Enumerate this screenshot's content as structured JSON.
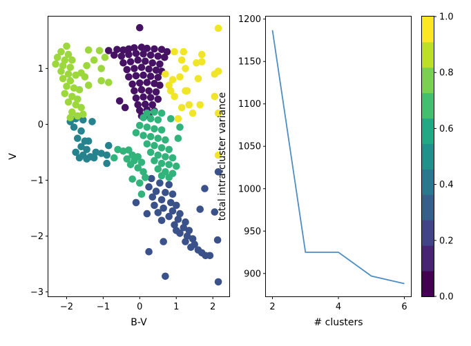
{
  "chart_data": [
    {
      "type": "scatter",
      "title": "",
      "xlabel": "B-V",
      "ylabel": "V",
      "xlim": [
        -2.5,
        2.45
      ],
      "ylim": [
        -3.08,
        1.93
      ],
      "xticks": [
        -2,
        -1,
        0,
        1,
        2
      ],
      "xtick_labels": [
        "−2",
        "−1",
        "0",
        "1",
        "2"
      ],
      "yticks": [
        -3,
        -2,
        -1,
        0,
        1
      ],
      "ytick_labels": [
        "−3",
        "−2",
        "−1",
        "0",
        "1"
      ],
      "grid": false,
      "legend": "none",
      "color_scale": "viridis, values 0.0 to 1.0 via colorbar",
      "series": [
        {
          "value": 0.05,
          "points": [
            [
              0.0,
              1.73
            ],
            [
              -0.85,
              1.32
            ],
            [
              -0.62,
              1.34
            ],
            [
              -0.45,
              1.33
            ],
            [
              -0.3,
              1.35
            ],
            [
              -0.15,
              1.37
            ],
            [
              0.05,
              1.38
            ],
            [
              0.2,
              1.36
            ],
            [
              0.4,
              1.35
            ],
            [
              0.6,
              1.34
            ],
            [
              0.75,
              1.3
            ],
            [
              -0.7,
              1.24
            ],
            [
              -0.5,
              1.22
            ],
            [
              -0.3,
              1.25
            ],
            [
              -0.1,
              1.27
            ],
            [
              0.1,
              1.26
            ],
            [
              0.3,
              1.24
            ],
            [
              0.5,
              1.22
            ],
            [
              0.68,
              1.2
            ],
            [
              -0.45,
              1.1
            ],
            [
              -0.25,
              1.12
            ],
            [
              -0.05,
              1.15
            ],
            [
              0.15,
              1.13
            ],
            [
              0.35,
              1.1
            ],
            [
              0.55,
              1.08
            ],
            [
              -0.35,
              0.98
            ],
            [
              -0.15,
              1.0
            ],
            [
              0.05,
              1.02
            ],
            [
              0.25,
              0.99
            ],
            [
              0.45,
              0.97
            ],
            [
              0.6,
              0.95
            ],
            [
              -0.3,
              0.85
            ],
            [
              -0.1,
              0.87
            ],
            [
              0.1,
              0.88
            ],
            [
              0.3,
              0.86
            ],
            [
              0.5,
              0.84
            ],
            [
              -0.2,
              0.72
            ],
            [
              0.0,
              0.74
            ],
            [
              0.2,
              0.75
            ],
            [
              0.4,
              0.73
            ],
            [
              0.55,
              0.7
            ],
            [
              -0.15,
              0.6
            ],
            [
              0.05,
              0.62
            ],
            [
              0.25,
              0.6
            ],
            [
              0.45,
              0.58
            ],
            [
              -0.1,
              0.47
            ],
            [
              0.1,
              0.49
            ],
            [
              0.3,
              0.48
            ],
            [
              0.5,
              0.45
            ],
            [
              -0.05,
              0.35
            ],
            [
              0.15,
              0.36
            ],
            [
              0.35,
              0.35
            ],
            [
              0.0,
              0.25
            ],
            [
              0.2,
              0.26
            ],
            [
              0.4,
              0.24
            ],
            [
              -0.55,
              0.42
            ],
            [
              -0.4,
              0.3
            ],
            [
              0.05,
              0.15
            ],
            [
              0.25,
              0.15
            ]
          ]
        },
        {
          "value": 0.25,
          "points": [
            [
              0.32,
              -0.97
            ],
            [
              0.55,
              -1.05
            ],
            [
              0.8,
              -1.08
            ],
            [
              0.25,
              -1.12
            ],
            [
              0.45,
              -1.2
            ],
            [
              0.7,
              -1.22
            ],
            [
              0.9,
              -1.25
            ],
            [
              0.35,
              -1.3
            ],
            [
              0.6,
              -1.35
            ],
            [
              0.85,
              -1.4
            ],
            [
              1.0,
              -1.45
            ],
            [
              0.4,
              -1.45
            ],
            [
              0.65,
              -1.5
            ],
            [
              0.9,
              -1.55
            ],
            [
              1.1,
              -1.6
            ],
            [
              0.5,
              -1.58
            ],
            [
              0.8,
              -1.65
            ],
            [
              1.05,
              -1.7
            ],
            [
              1.25,
              -1.75
            ],
            [
              0.6,
              -1.72
            ],
            [
              0.95,
              -1.8
            ],
            [
              1.2,
              -1.85
            ],
            [
              1.35,
              -1.9
            ],
            [
              1.1,
              -1.95
            ],
            [
              1.3,
              -2.0
            ],
            [
              1.45,
              -2.05
            ],
            [
              1.25,
              -2.1
            ],
            [
              1.5,
              -2.15
            ],
            [
              1.4,
              -2.2
            ],
            [
              1.6,
              -2.25
            ],
            [
              1.7,
              -2.3
            ],
            [
              1.8,
              -2.35
            ],
            [
              1.92,
              -2.35
            ],
            [
              -0.1,
              -1.4
            ],
            [
              0.2,
              -1.6
            ],
            [
              0.65,
              -2.1
            ],
            [
              0.25,
              -2.28
            ],
            [
              0.7,
              -2.72
            ],
            [
              1.78,
              -1.15
            ],
            [
              1.65,
              -1.52
            ],
            [
              2.05,
              -1.57
            ],
            [
              2.13,
              -2.07
            ],
            [
              2.15,
              -2.82
            ],
            [
              2.15,
              -0.85
            ],
            [
              1.0,
              -1.9
            ]
          ]
        },
        {
          "value": 0.45,
          "points": [
            [
              -1.9,
              0.05
            ],
            [
              -1.75,
              0.1
            ],
            [
              -1.55,
              0.08
            ],
            [
              -1.3,
              0.05
            ],
            [
              -1.8,
              -0.05
            ],
            [
              -1.6,
              -0.12
            ],
            [
              -1.7,
              -0.25
            ],
            [
              -1.5,
              -0.3
            ],
            [
              -1.6,
              -0.4
            ],
            [
              -1.45,
              -0.45
            ],
            [
              -1.55,
              -0.55
            ],
            [
              -1.35,
              -0.58
            ],
            [
              -1.2,
              -0.5
            ],
            [
              -1.05,
              -0.52
            ],
            [
              -1.45,
              -0.62
            ],
            [
              -1.25,
              -0.6
            ],
            [
              -0.9,
              -0.55
            ],
            [
              -0.85,
              -0.38
            ],
            [
              -0.9,
              -0.7
            ],
            [
              -1.65,
              -0.6
            ],
            [
              -1.75,
              -0.5
            ],
            [
              -1.4,
              -0.3
            ]
          ]
        },
        {
          "value": 0.65,
          "points": [
            [
              0.2,
              0.2
            ],
            [
              0.4,
              0.22
            ],
            [
              0.6,
              0.2
            ],
            [
              0.1,
              0.12
            ],
            [
              0.3,
              0.1
            ],
            [
              0.5,
              0.08
            ],
            [
              0.0,
              -0.02
            ],
            [
              0.2,
              -0.05
            ],
            [
              0.4,
              -0.08
            ],
            [
              0.6,
              -0.1
            ],
            [
              -0.1,
              -0.15
            ],
            [
              0.1,
              -0.2
            ],
            [
              0.3,
              -0.22
            ],
            [
              0.5,
              -0.25
            ],
            [
              0.7,
              -0.28
            ],
            [
              0.2,
              -0.35
            ],
            [
              0.4,
              -0.38
            ],
            [
              0.6,
              -0.42
            ],
            [
              0.8,
              -0.45
            ],
            [
              0.3,
              -0.5
            ],
            [
              0.5,
              -0.55
            ],
            [
              0.7,
              -0.58
            ],
            [
              0.9,
              -0.6
            ],
            [
              0.4,
              -0.65
            ],
            [
              0.6,
              -0.7
            ],
            [
              0.8,
              -0.72
            ],
            [
              1.0,
              -0.75
            ],
            [
              0.5,
              -0.8
            ],
            [
              0.7,
              -0.85
            ],
            [
              0.9,
              -0.88
            ],
            [
              0.6,
              -0.92
            ],
            [
              0.8,
              -0.95
            ],
            [
              -0.6,
              -0.45
            ],
            [
              -0.45,
              -0.48
            ],
            [
              -0.3,
              -0.46
            ],
            [
              -0.2,
              -0.55
            ],
            [
              -0.05,
              -0.58
            ],
            [
              -0.35,
              -0.62
            ],
            [
              -0.15,
              -0.65
            ],
            [
              0.05,
              -0.68
            ],
            [
              -0.25,
              -0.72
            ],
            [
              -0.05,
              -0.78
            ],
            [
              0.1,
              -0.85
            ],
            [
              0.15,
              -0.95
            ],
            [
              -0.2,
              -0.98
            ],
            [
              0.0,
              -1.05
            ],
            [
              0.05,
              -1.25
            ],
            [
              1.1,
              -0.05
            ],
            [
              1.05,
              -0.25
            ],
            [
              0.85,
              0.1
            ],
            [
              -0.7,
              -0.6
            ]
          ]
        },
        {
          "value": 0.85,
          "points": [
            [
              -2.0,
              1.4
            ],
            [
              -2.15,
              1.3
            ],
            [
              -1.95,
              1.25
            ],
            [
              -2.25,
              1.2
            ],
            [
              -2.05,
              1.15
            ],
            [
              -1.85,
              1.15
            ],
            [
              -2.3,
              1.08
            ],
            [
              -2.1,
              1.05
            ],
            [
              -1.9,
              1.02
            ],
            [
              -2.15,
              0.95
            ],
            [
              -1.95,
              0.9
            ],
            [
              -1.75,
              0.88
            ],
            [
              -2.1,
              0.82
            ],
            [
              -1.9,
              0.78
            ],
            [
              -2.0,
              0.68
            ],
            [
              -1.8,
              0.65
            ],
            [
              -1.65,
              0.62
            ],
            [
              -2.05,
              0.55
            ],
            [
              -1.85,
              0.5
            ],
            [
              -1.7,
              0.45
            ],
            [
              -1.95,
              0.4
            ],
            [
              -1.75,
              0.35
            ],
            [
              -1.6,
              0.3
            ],
            [
              -1.85,
              0.22
            ],
            [
              -1.7,
              0.15
            ],
            [
              -1.55,
              0.18
            ],
            [
              -1.9,
              0.12
            ],
            [
              -1.45,
              1.05
            ],
            [
              -1.5,
              0.85
            ],
            [
              -1.25,
              1.15
            ],
            [
              -1.05,
              1.0
            ],
            [
              -0.95,
              1.2
            ],
            [
              -1.4,
              0.7
            ],
            [
              -1.1,
              1.32
            ],
            [
              -1.4,
              1.33
            ],
            [
              -0.85,
              0.75
            ],
            [
              -1.05,
              0.78
            ],
            [
              -1.6,
              0.92
            ]
          ]
        },
        {
          "value": 0.98,
          "points": [
            [
              2.15,
              1.72
            ],
            [
              2.15,
              0.95
            ],
            [
              2.05,
              0.9
            ],
            [
              1.7,
              1.25
            ],
            [
              1.55,
              1.1
            ],
            [
              1.25,
              1.0
            ],
            [
              1.1,
              0.85
            ],
            [
              1.6,
              0.82
            ],
            [
              1.35,
              0.35
            ],
            [
              1.15,
              0.3
            ],
            [
              1.65,
              0.35
            ],
            [
              2.15,
              0.2
            ],
            [
              1.45,
              0.2
            ],
            [
              1.05,
              0.1
            ],
            [
              0.95,
              0.5
            ],
            [
              0.9,
              0.8
            ],
            [
              0.8,
              0.7
            ],
            [
              1.2,
              1.3
            ],
            [
              1.15,
              1.15
            ],
            [
              0.95,
              1.3
            ],
            [
              1.25,
              0.6
            ],
            [
              1.3,
              0.6
            ],
            [
              2.05,
              0.5
            ],
            [
              0.85,
              0.6
            ],
            [
              0.7,
              0.9
            ],
            [
              1.7,
              1.12
            ],
            [
              2.15,
              -0.55
            ]
          ]
        }
      ]
    },
    {
      "type": "line",
      "title": "",
      "xlabel": "# clusters",
      "ylabel": "total intra-cluster variance",
      "x": [
        2,
        3,
        4,
        5,
        6
      ],
      "y": [
        1187,
        925,
        925,
        897,
        888
      ],
      "xlim": [
        1.8,
        6.2
      ],
      "ylim": [
        873,
        1203
      ],
      "xticks": [
        2,
        4,
        6
      ],
      "xtick_labels": [
        "2",
        "4",
        "6"
      ],
      "yticks": [
        900,
        950,
        1000,
        1050,
        1100,
        1150,
        1200
      ],
      "ytick_labels": [
        "900",
        "950",
        "1000",
        "1050",
        "1100",
        "1150",
        "1200"
      ],
      "color": "#4d8cc2",
      "grid": false,
      "legend": "none"
    },
    {
      "type": "colorbar",
      "range": [
        0,
        1
      ],
      "ticks": [
        0,
        0.2,
        0.4,
        0.6,
        0.8,
        1.0
      ],
      "tick_labels": [
        "0.0",
        "0.2",
        "0.4",
        "0.6",
        "0.8",
        "1.0"
      ],
      "levels": [
        "#440154",
        "#482475",
        "#414487",
        "#355f8d",
        "#2a788e",
        "#21918c",
        "#22a884",
        "#44bf70",
        "#7ad151",
        "#bddf26",
        "#fde725"
      ]
    }
  ]
}
